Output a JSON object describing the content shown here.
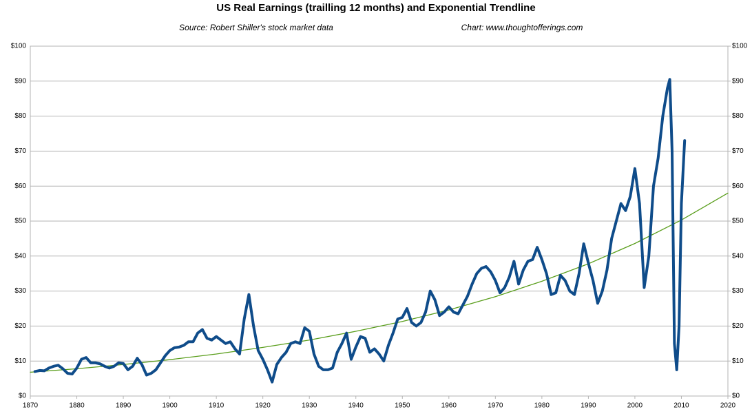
{
  "chart_data": {
    "type": "line",
    "title": "US Real Earnings (trailling 12 months) and Exponential Trendline",
    "subtitle": "Source: Robert Shiller's stock market data",
    "credit": "Chart: www.thoughtofferings.com",
    "xlim": [
      1870,
      2020
    ],
    "xticks": [
      1870,
      1880,
      1890,
      1900,
      1910,
      1920,
      1930,
      1940,
      1950,
      1960,
      1970,
      1980,
      1990,
      2000,
      2010,
      2020
    ],
    "ylim": [
      0,
      100
    ],
    "yticks": [
      {
        "value": 0,
        "label": "$0"
      },
      {
        "value": 10,
        "label": "$10"
      },
      {
        "value": 20,
        "label": "$20"
      },
      {
        "value": 30,
        "label": "$30"
      },
      {
        "value": 40,
        "label": "$40"
      },
      {
        "value": 50,
        "label": "$50"
      },
      {
        "value": 60,
        "label": "$60"
      },
      {
        "value": 70,
        "label": "$70"
      },
      {
        "value": 80,
        "label": "$80"
      },
      {
        "value": 90,
        "label": "$90"
      },
      {
        "value": 100,
        "label": "$100"
      }
    ],
    "y2lim": [
      0,
      100
    ],
    "y2ticks": [
      {
        "value": 0,
        "label": "$0"
      },
      {
        "value": 10,
        "label": "$10"
      },
      {
        "value": 20,
        "label": "$20"
      },
      {
        "value": 30,
        "label": "$30"
      },
      {
        "value": 40,
        "label": "$40"
      },
      {
        "value": 50,
        "label": "$50"
      },
      {
        "value": 60,
        "label": "$60"
      },
      {
        "value": 70,
        "label": "$70"
      },
      {
        "value": 80,
        "label": "$80"
      },
      {
        "value": 90,
        "label": "$90"
      },
      {
        "value": 100,
        "label": "$100"
      }
    ],
    "grid": true,
    "series": [
      {
        "color": "#0f4c8a",
        "width": 4,
        "x": [
          1871,
          1872,
          1873,
          1874,
          1875,
          1876,
          1877,
          1878,
          1879,
          1880,
          1881,
          1882,
          1883,
          1884,
          1885,
          1886,
          1887,
          1888,
          1889,
          1890,
          1891,
          1892,
          1893,
          1894,
          1895,
          1896,
          1897,
          1898,
          1899,
          1900,
          1901,
          1902,
          1903,
          1904,
          1905,
          1906,
          1907,
          1908,
          1909,
          1910,
          1911,
          1912,
          1913,
          1914,
          1915,
          1916,
          1917,
          1918,
          1919,
          1920,
          1921,
          1922,
          1923,
          1924,
          1925,
          1926,
          1927,
          1928,
          1929,
          1930,
          1931,
          1932,
          1933,
          1934,
          1935,
          1936,
          1937,
          1938,
          1939,
          1940,
          1941,
          1942,
          1943,
          1944,
          1945,
          1946,
          1947,
          1948,
          1949,
          1950,
          1951,
          1952,
          1953,
          1954,
          1955,
          1956,
          1957,
          1958,
          1959,
          1960,
          1961,
          1962,
          1963,
          1964,
          1965,
          1966,
          1967,
          1968,
          1969,
          1970,
          1971,
          1972,
          1973,
          1974,
          1975,
          1976,
          1977,
          1978,
          1979,
          1980,
          1981,
          1982,
          1983,
          1984,
          1985,
          1986,
          1987,
          1988,
          1989,
          1990,
          1991,
          1992,
          1993,
          1994,
          1995,
          1996,
          1997,
          1998,
          1999,
          2000,
          2001,
          2002,
          2003,
          2004,
          2005,
          2006,
          2007,
          2007.5,
          2008,
          2008.5,
          2009,
          2009.5,
          2010,
          2010.7
        ],
        "values": [
          7,
          7.3,
          7.2,
          8,
          8.5,
          8.8,
          7.8,
          6.5,
          6.3,
          8,
          10.5,
          11,
          9.5,
          9.5,
          9.2,
          8.5,
          8,
          8.5,
          9.5,
          9.3,
          7.5,
          8.5,
          10.8,
          9,
          6,
          6.5,
          7.5,
          9.5,
          11.5,
          13,
          13.8,
          14,
          14.5,
          15.5,
          15.5,
          18,
          19,
          16.5,
          16,
          17,
          16,
          15,
          15.5,
          13.5,
          12,
          22,
          29,
          20,
          13,
          10.5,
          7.5,
          4,
          9,
          11,
          12.5,
          15,
          15.5,
          15,
          19.5,
          18.5,
          12,
          8.5,
          7.5,
          7.5,
          8,
          12.5,
          15,
          18,
          10.5,
          14,
          17,
          16.5,
          12.5,
          13.5,
          12,
          10,
          14.5,
          18,
          22,
          22.5,
          25,
          21,
          20,
          21,
          24,
          30,
          27.5,
          23,
          24,
          25.5,
          24,
          23.5,
          26,
          28.5,
          32,
          35,
          36.5,
          37,
          35.5,
          33,
          29.5,
          31,
          34,
          38.5,
          32,
          36,
          38.5,
          39,
          42.5,
          39,
          35,
          29,
          29.5,
          34.5,
          33,
          30,
          29,
          35,
          43.5,
          38,
          33,
          26.5,
          30,
          36,
          45,
          50,
          55,
          53,
          57,
          65,
          55,
          31,
          40,
          60,
          68,
          80,
          88,
          90.5,
          70,
          15,
          7.5,
          20,
          55,
          73
        ]
      },
      {
        "color": "#5a9e1c",
        "width": 1.3,
        "x": [
          1870,
          1880,
          1890,
          1900,
          1910,
          1920,
          1930,
          1940,
          1950,
          1960,
          1970,
          1980,
          1990,
          2000,
          2010,
          2020
        ],
        "values": [
          6.8,
          7.8,
          9.0,
          10.4,
          12.0,
          13.9,
          16.0,
          18.5,
          21.3,
          24.6,
          28.4,
          32.8,
          37.8,
          43.6,
          50.3,
          58.0
        ]
      }
    ]
  }
}
